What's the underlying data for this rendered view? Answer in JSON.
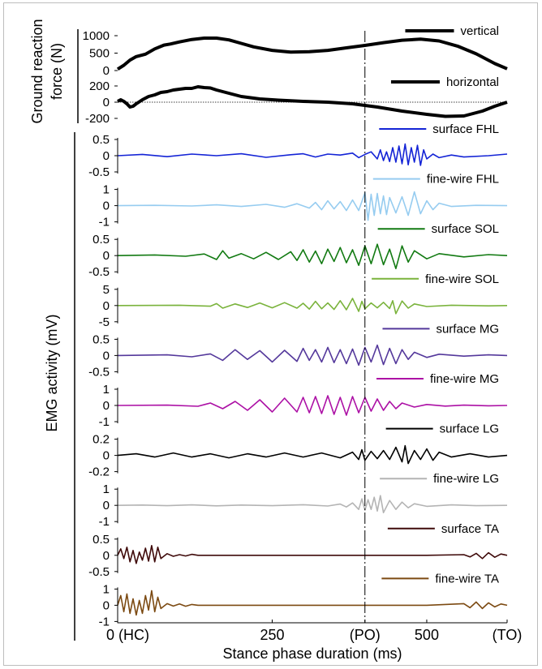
{
  "chart_data": {
    "type": "line",
    "xlabel": "Stance phase duration (ms)",
    "x_ticks": [
      "0 (HC)",
      "250",
      "(PO)",
      "500",
      "(TO)"
    ],
    "x_tick_values": [
      0,
      250,
      400,
      500,
      630
    ],
    "xlim": [
      0,
      630
    ],
    "stance_markers": {
      "HC": 0,
      "PO": 400,
      "TO": 630
    },
    "grf": {
      "ylabel": "Ground reaction force (N)",
      "panels": [
        {
          "name": "vertical",
          "color": "#000000",
          "ylim": [
            0,
            1000
          ],
          "yticks": [
            "1000",
            "500",
            "0"
          ],
          "ytick_values": [
            1000,
            500,
            0
          ],
          "x": [
            0,
            10,
            20,
            30,
            45,
            60,
            75,
            85,
            100,
            120,
            140,
            160,
            180,
            200,
            220,
            250,
            280,
            310,
            340,
            370,
            400,
            430,
            460,
            490,
            520,
            550,
            580,
            610,
            630
          ],
          "values": [
            40,
            150,
            300,
            400,
            470,
            620,
            730,
            760,
            820,
            890,
            930,
            930,
            880,
            780,
            680,
            580,
            530,
            540,
            580,
            650,
            720,
            800,
            870,
            900,
            850,
            700,
            480,
            200,
            50
          ]
        },
        {
          "name": "horizontal",
          "color": "#000000",
          "ylim": [
            -200,
            200
          ],
          "yticks": [
            "200",
            "0",
            "-200"
          ],
          "ytick_values": [
            200,
            0,
            -200
          ],
          "baseline": 0,
          "x": [
            0,
            5,
            10,
            15,
            20,
            25,
            30,
            40,
            50,
            60,
            70,
            80,
            90,
            100,
            110,
            120,
            130,
            140,
            150,
            160,
            180,
            200,
            230,
            260,
            300,
            340,
            380,
            420,
            460,
            500,
            530,
            560,
            590,
            610,
            630
          ],
          "values": [
            10,
            30,
            10,
            -20,
            -60,
            -50,
            -20,
            30,
            70,
            90,
            120,
            130,
            150,
            160,
            170,
            170,
            190,
            180,
            175,
            150,
            110,
            70,
            40,
            25,
            10,
            0,
            -20,
            -60,
            -110,
            -150,
            -175,
            -170,
            -110,
            -50,
            0
          ]
        }
      ]
    },
    "emg": {
      "ylabel": "EMG activity (mV)",
      "series": [
        {
          "name": "surface FHL",
          "color": "#1424d6",
          "ylim": [
            -0.5,
            0.5
          ],
          "yticks": [
            "0.5",
            "0",
            "-0.5"
          ],
          "ytick_values": [
            0.5,
            0,
            -0.5
          ],
          "x": [
            0,
            40,
            80,
            120,
            160,
            200,
            240,
            280,
            300,
            320,
            340,
            360,
            380,
            390,
            400,
            410,
            420,
            425,
            430,
            435,
            440,
            445,
            450,
            455,
            460,
            465,
            470,
            475,
            480,
            485,
            490,
            495,
            500,
            510,
            520,
            540,
            560,
            600,
            630
          ],
          "values": [
            0,
            0.04,
            -0.03,
            0.05,
            0,
            0.06,
            -0.05,
            0.03,
            0.06,
            -0.04,
            0.05,
            0.02,
            0.08,
            -0.06,
            0.04,
            0.12,
            -0.1,
            0.18,
            -0.15,
            0.12,
            -0.18,
            0.25,
            -0.2,
            0.3,
            -0.25,
            0.36,
            -0.28,
            0.25,
            -0.2,
            0.32,
            -0.3,
            0.18,
            -0.1,
            0.05,
            -0.06,
            0.02,
            -0.04,
            0,
            0.05
          ]
        },
        {
          "name": "fine-wire FHL",
          "color": "#96ccf0",
          "ylim": [
            -1,
            1
          ],
          "yticks": [
            "1",
            "0",
            "-1"
          ],
          "ytick_values": [
            1,
            0,
            -1
          ],
          "x": [
            0,
            60,
            120,
            160,
            200,
            240,
            270,
            290,
            310,
            320,
            330,
            340,
            350,
            360,
            370,
            380,
            390,
            400,
            405,
            410,
            415,
            420,
            425,
            430,
            435,
            440,
            450,
            460,
            470,
            480,
            490,
            500,
            510,
            520,
            540,
            580,
            630
          ],
          "values": [
            0,
            0.02,
            -0.02,
            0.05,
            -0.05,
            0.08,
            -0.1,
            0.12,
            -0.15,
            0.2,
            -0.25,
            0.3,
            -0.2,
            0.25,
            -0.3,
            0.35,
            -0.3,
            0.8,
            -0.9,
            0.7,
            -0.6,
            0.75,
            -0.5,
            0.6,
            -0.55,
            0.5,
            -0.45,
            0.55,
            -0.6,
            0.85,
            -0.5,
            0.3,
            -0.25,
            0.15,
            -0.05,
            0.02,
            0
          ]
        },
        {
          "name": "surface SOL",
          "color": "#127a12",
          "ylim": [
            -0.5,
            0.5
          ],
          "yticks": [
            "0.5",
            "0",
            "-0.5"
          ],
          "ytick_values": [
            0.5,
            0,
            -0.5
          ],
          "x": [
            0,
            60,
            110,
            140,
            160,
            170,
            180,
            200,
            220,
            240,
            260,
            280,
            290,
            300,
            310,
            320,
            330,
            340,
            350,
            360,
            370,
            380,
            390,
            400,
            410,
            420,
            430,
            440,
            450,
            460,
            470,
            480,
            500,
            520,
            560,
            600,
            630
          ],
          "values": [
            0,
            0.02,
            -0.02,
            0.05,
            -0.12,
            0.15,
            -0.08,
            0.06,
            -0.1,
            0.1,
            -0.12,
            0.12,
            -0.15,
            0.18,
            -0.2,
            0.14,
            -0.25,
            0.2,
            -0.18,
            0.25,
            -0.22,
            0.18,
            -0.3,
            0.3,
            -0.25,
            0.35,
            -0.28,
            0.2,
            -0.4,
            0.3,
            -0.2,
            0.15,
            -0.1,
            0.06,
            -0.04,
            0.03,
            0
          ]
        },
        {
          "name": "fine-wire SOL",
          "color": "#7ab33c",
          "ylim": [
            -5,
            5
          ],
          "yticks": [
            "5",
            "0",
            "-5"
          ],
          "ytick_values": [
            5,
            0,
            -5
          ],
          "x": [
            0,
            100,
            150,
            160,
            170,
            190,
            210,
            230,
            250,
            270,
            290,
            300,
            310,
            320,
            330,
            340,
            350,
            360,
            370,
            380,
            390,
            395,
            400,
            410,
            420,
            430,
            440,
            445,
            450,
            460,
            470,
            480,
            500,
            540,
            600,
            630
          ],
          "values": [
            0,
            0.1,
            -0.2,
            0.6,
            -0.8,
            0.5,
            -0.6,
            0.8,
            -0.7,
            0.9,
            -0.8,
            0.7,
            -1.1,
            1.3,
            -1.0,
            0.8,
            -1.2,
            1.5,
            -1.3,
            2.2,
            -1.8,
            1.3,
            -1.0,
            0.8,
            -0.7,
            1.0,
            -0.9,
            1.5,
            -2.5,
            1.4,
            -0.8,
            0.5,
            -0.3,
            0.1,
            -0.1,
            0
          ]
        },
        {
          "name": "surface MG",
          "color": "#54389b",
          "ylim": [
            -0.5,
            0.5
          ],
          "yticks": [
            "0.5",
            "0",
            "-0.5"
          ],
          "ytick_values": [
            0.5,
            0,
            -0.5
          ],
          "x": [
            0,
            80,
            120,
            150,
            170,
            190,
            210,
            230,
            250,
            270,
            290,
            300,
            310,
            320,
            330,
            340,
            350,
            360,
            370,
            380,
            390,
            400,
            410,
            420,
            430,
            440,
            450,
            460,
            470,
            480,
            500,
            520,
            560,
            600,
            630
          ],
          "values": [
            0,
            0.02,
            -0.04,
            0.05,
            -0.15,
            0.18,
            -0.12,
            0.15,
            -0.2,
            0.16,
            -0.18,
            0.22,
            -0.15,
            0.18,
            -0.2,
            0.25,
            -0.22,
            0.18,
            -0.25,
            0.2,
            -0.3,
            0.25,
            -0.2,
            0.32,
            -0.28,
            0.22,
            -0.25,
            0.18,
            -0.12,
            0.1,
            -0.06,
            0.04,
            -0.02,
            0.02,
            0
          ]
        },
        {
          "name": "fine-wire MG",
          "color": "#ac10a5",
          "ylim": [
            -1,
            1
          ],
          "yticks": [
            "1",
            "0",
            "-1"
          ],
          "ytick_values": [
            1,
            0,
            -1
          ],
          "x": [
            0,
            80,
            130,
            150,
            170,
            190,
            210,
            230,
            250,
            270,
            290,
            300,
            310,
            320,
            330,
            340,
            350,
            360,
            370,
            380,
            390,
            400,
            410,
            420,
            430,
            440,
            450,
            460,
            480,
            500,
            530,
            560,
            600,
            630
          ],
          "values": [
            0,
            0.02,
            -0.05,
            0.15,
            -0.2,
            0.25,
            -0.3,
            0.35,
            -0.4,
            0.45,
            -0.4,
            0.5,
            -0.45,
            0.55,
            -0.5,
            0.6,
            -0.55,
            0.5,
            -0.6,
            0.55,
            -0.45,
            0.5,
            -0.35,
            0.4,
            -0.3,
            0.25,
            -0.2,
            0.15,
            -0.1,
            0.06,
            -0.04,
            0.02,
            -0.02,
            0
          ]
        },
        {
          "name": "surface LG",
          "color": "#000000",
          "ylim": [
            -0.2,
            0.2
          ],
          "yticks": [
            "0.2",
            "0",
            "-0.2"
          ],
          "ytick_values": [
            0.2,
            0,
            -0.2
          ],
          "x": [
            0,
            30,
            60,
            90,
            120,
            150,
            180,
            210,
            240,
            270,
            300,
            330,
            360,
            380,
            390,
            395,
            400,
            410,
            420,
            430,
            440,
            450,
            460,
            465,
            470,
            480,
            490,
            500,
            510,
            520,
            540,
            570,
            600,
            630
          ],
          "values": [
            0,
            0.02,
            -0.02,
            0.03,
            -0.02,
            0.02,
            -0.03,
            0.02,
            -0.02,
            0.03,
            -0.02,
            0.03,
            -0.03,
            0.04,
            -0.05,
            0.07,
            -0.06,
            0.05,
            -0.04,
            0.06,
            -0.05,
            0.1,
            -0.08,
            0.12,
            -0.1,
            0.06,
            -0.05,
            0.08,
            -0.06,
            0.04,
            -0.02,
            0.02,
            -0.02,
            0
          ]
        },
        {
          "name": "fine-wire LG",
          "color": "#b4b4b4",
          "ylim": [
            -1,
            1
          ],
          "yticks": [
            "1",
            "0",
            "-1"
          ],
          "ytick_values": [
            1,
            0,
            -1
          ],
          "x": [
            0,
            40,
            80,
            120,
            160,
            200,
            250,
            300,
            340,
            360,
            370,
            380,
            390,
            395,
            400,
            405,
            410,
            415,
            420,
            425,
            430,
            440,
            450,
            460,
            470,
            480,
            500,
            540,
            580,
            630
          ],
          "values": [
            0,
            0.02,
            -0.02,
            0.03,
            -0.03,
            0.02,
            -0.02,
            0.04,
            -0.04,
            0.08,
            -0.1,
            0.15,
            -0.25,
            0.4,
            -0.3,
            0.35,
            -0.25,
            0.5,
            -0.35,
            0.6,
            -0.45,
            0.3,
            -0.25,
            0.2,
            -0.15,
            0.1,
            -0.06,
            0.03,
            -0.02,
            0
          ]
        },
        {
          "name": "surface TA",
          "color": "#3f0a0a",
          "ylim": [
            -0.5,
            0.5
          ],
          "yticks": [
            "0.5",
            "0",
            "-0.5"
          ],
          "ytick_values": [
            0.5,
            0,
            -0.5
          ],
          "x": [
            0,
            5,
            10,
            15,
            20,
            25,
            30,
            35,
            40,
            45,
            50,
            55,
            60,
            65,
            70,
            80,
            90,
            100,
            110,
            120,
            130,
            200,
            300,
            400,
            500,
            560,
            570,
            580,
            590,
            600,
            610,
            620,
            630
          ],
          "values": [
            0,
            0.2,
            -0.1,
            0.25,
            -0.2,
            0.15,
            -0.25,
            0.1,
            -0.15,
            0.22,
            -0.18,
            0.3,
            -0.2,
            0.25,
            -0.1,
            0.05,
            -0.03,
            0.02,
            -0.02,
            0.03,
            0,
            0,
            0,
            0,
            0,
            0.02,
            -0.05,
            0.06,
            -0.1,
            0.08,
            -0.06,
            0.04,
            0
          ]
        },
        {
          "name": "fine-wire TA",
          "color": "#7c4a12",
          "ylim": [
            -1,
            1
          ],
          "yticks": [
            "1",
            "0",
            "-1"
          ],
          "ytick_values": [
            1,
            0,
            -1
          ],
          "x": [
            0,
            5,
            10,
            15,
            20,
            25,
            30,
            35,
            40,
            45,
            50,
            55,
            60,
            65,
            70,
            80,
            90,
            100,
            110,
            120,
            130,
            200,
            300,
            400,
            500,
            560,
            570,
            580,
            590,
            600,
            610,
            620,
            630
          ],
          "values": [
            0,
            0.6,
            -0.4,
            0.7,
            -0.5,
            0.4,
            -0.6,
            0.3,
            -0.5,
            0.6,
            -0.3,
            0.9,
            -0.4,
            0.5,
            -0.2,
            0.1,
            -0.05,
            0.08,
            -0.06,
            0.05,
            0,
            0,
            0,
            0,
            0,
            0.1,
            -0.15,
            0.2,
            -0.2,
            0.15,
            -0.1,
            0.08,
            0
          ]
        }
      ]
    }
  }
}
